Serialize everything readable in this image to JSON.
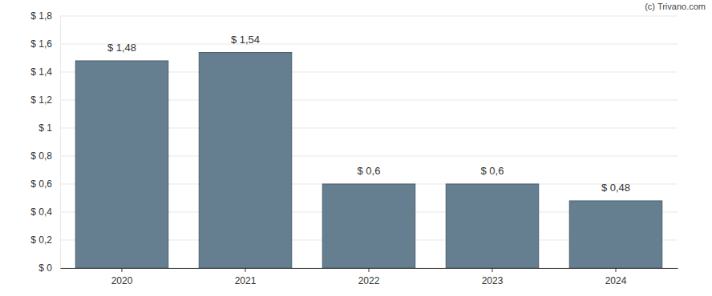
{
  "chart_data": {
    "type": "bar",
    "annotations": [
      "(c) Trivano.com"
    ],
    "categories": [
      "2020",
      "2021",
      "2022",
      "2023",
      "2024"
    ],
    "values": [
      1.48,
      1.54,
      0.6,
      0.6,
      0.48
    ],
    "value_labels": [
      "$ 1,48",
      "$ 1,54",
      "$ 0,6",
      "$ 0,6",
      "$ 0,48"
    ],
    "data_labels": true,
    "color": "#657f91",
    "ylim": [
      0,
      1.8
    ],
    "yticks": [
      {
        "value": 0,
        "label": "$ 0"
      },
      {
        "value": 0.2,
        "label": "$ 0,2"
      },
      {
        "value": 0.4,
        "label": "$ 0,4"
      },
      {
        "value": 0.6,
        "label": "$ 0,6"
      },
      {
        "value": 0.8,
        "label": "$ 0,8"
      },
      {
        "value": 1,
        "label": "$ 1"
      },
      {
        "value": 1.2,
        "label": "$ 1,2"
      },
      {
        "value": 1.4,
        "label": "$ 1,4"
      },
      {
        "value": 1.6,
        "label": "$ 1,6"
      },
      {
        "value": 1.8,
        "label": "$ 1,8"
      }
    ],
    "grid": true
  }
}
